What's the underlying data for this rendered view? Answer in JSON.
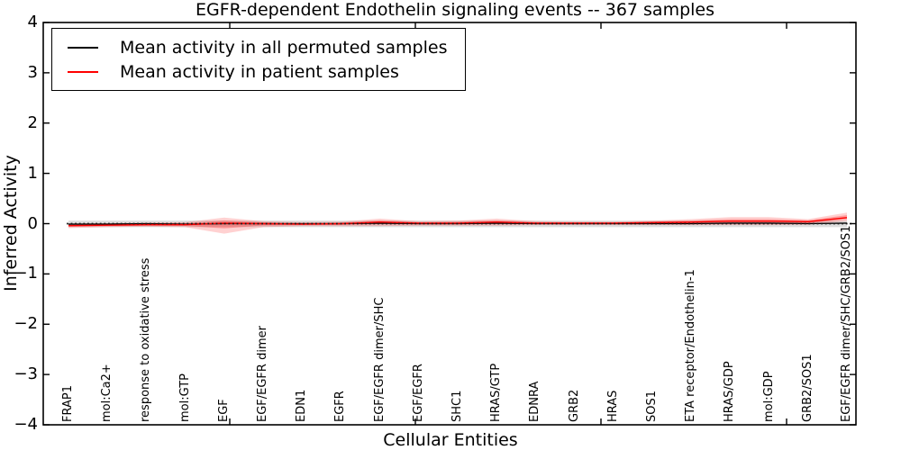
{
  "chart_data": {
    "type": "line",
    "title": "EGFR-dependent Endothelin signaling events -- 367 samples",
    "xlabel": "Cellular Entities",
    "ylabel": "Inferred Activity",
    "ylim": [
      -4,
      4
    ],
    "yticks": [
      4,
      3,
      2,
      1,
      0,
      -1,
      -2,
      -3,
      -4
    ],
    "ytick_labels": [
      "4",
      "3",
      "2",
      "1",
      "0",
      "−1",
      "−2",
      "−3",
      "−4"
    ],
    "grid": false,
    "legend_position": "upper left",
    "categories": [
      "FRAP1",
      "mol:Ca2+",
      "response to oxidative stress",
      "mol:GTP",
      "EGF",
      "EGF/EGFR dimer",
      "EDN1",
      "EGFR",
      "EGF/EGFR dimer/SHC",
      "EGF/EGFR",
      "SHC1",
      "HRAS/GTP",
      "EDNRA",
      "GRB2",
      "HRAS",
      "SOS1",
      "ETA receptor/Endothelin-1",
      "HRAS/GDP",
      "mol:GDP",
      "GRB2/SOS1",
      "EGF/EGFR dimer/SHC/GRB2/SOS1"
    ],
    "series": [
      {
        "name": "Mean activity in all permuted samples",
        "color": "#000000",
        "values": [
          -0.01,
          -0.01,
          0.0,
          -0.01,
          0.0,
          0.0,
          0.0,
          0.0,
          0.01,
          0.0,
          0.0,
          0.01,
          0.0,
          0.0,
          0.0,
          0.0,
          0.0,
          0.01,
          0.01,
          0.0,
          0.01
        ],
        "band_upper": [
          0.06,
          0.06,
          0.06,
          0.06,
          0.06,
          0.06,
          0.06,
          0.06,
          0.06,
          0.06,
          0.06,
          0.06,
          0.06,
          0.06,
          0.06,
          0.06,
          0.06,
          0.06,
          0.06,
          0.06,
          0.06
        ],
        "band_lower": [
          -0.07,
          -0.07,
          -0.07,
          -0.07,
          -0.07,
          -0.07,
          -0.07,
          -0.07,
          -0.07,
          -0.07,
          -0.07,
          -0.07,
          -0.07,
          -0.07,
          -0.07,
          -0.07,
          -0.07,
          -0.07,
          -0.07,
          -0.07,
          -0.07
        ]
      },
      {
        "name": "Mean activity in patient samples",
        "color": "#ff0000",
        "values": [
          -0.04,
          -0.03,
          -0.02,
          -0.02,
          0.01,
          0.0,
          -0.01,
          0.0,
          0.03,
          0.01,
          0.01,
          0.03,
          0.01,
          0.01,
          0.01,
          0.02,
          0.03,
          0.05,
          0.05,
          0.04,
          0.12
        ],
        "band_upper": [
          0.0,
          0.01,
          0.02,
          0.03,
          0.12,
          0.05,
          0.03,
          0.04,
          0.1,
          0.05,
          0.06,
          0.1,
          0.05,
          0.04,
          0.04,
          0.06,
          0.09,
          0.13,
          0.13,
          0.09,
          0.22
        ],
        "band_lower": [
          -0.09,
          -0.07,
          -0.06,
          -0.07,
          -0.2,
          -0.07,
          -0.05,
          -0.05,
          -0.05,
          -0.04,
          -0.04,
          -0.04,
          -0.03,
          -0.03,
          -0.03,
          -0.03,
          -0.03,
          -0.03,
          -0.03,
          -0.02,
          0.05
        ]
      }
    ],
    "baseline": {
      "y": 0,
      "style": "dotted",
      "color": "#1a1a1a"
    }
  }
}
